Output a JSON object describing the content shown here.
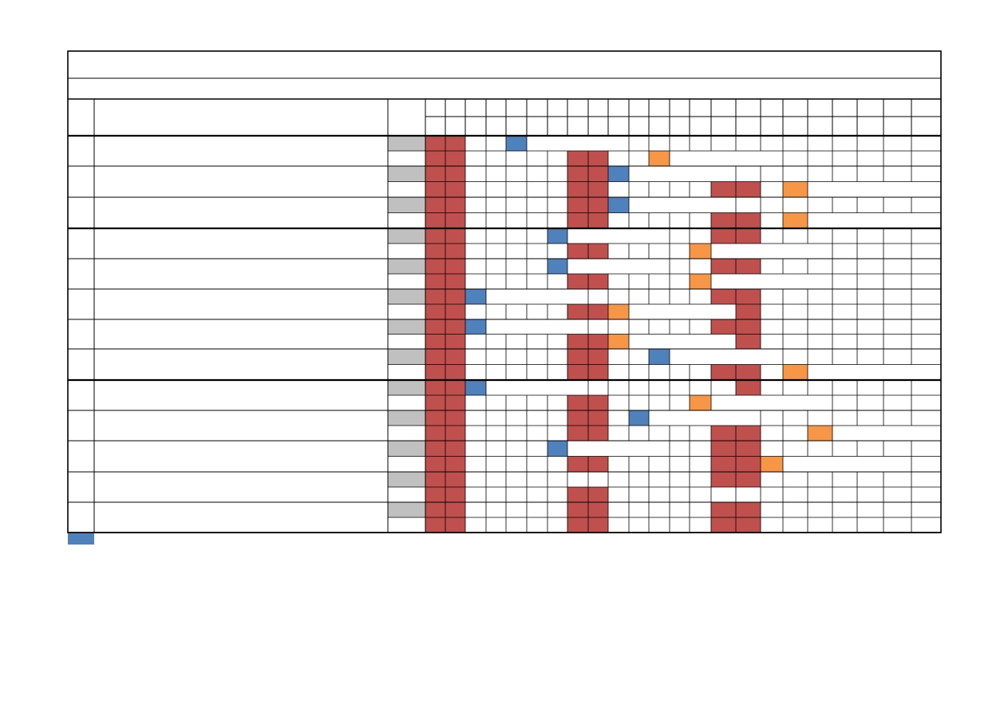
{
  "title": "",
  "subtitle": "",
  "colors": {
    "grid": "#000000",
    "gray": "#c0c0c0",
    "red": "#c0504d",
    "blue": "#4f81bd",
    "orange": "#f79646"
  },
  "legend": {
    "swatch_color": "blue",
    "label": ""
  },
  "schedule": {
    "column_count": 24,
    "rows": [
      [
        {
          "c": "red",
          "s": 0,
          "e": 1
        },
        {
          "c": "blue",
          "s": 4,
          "e": 4
        }
      ],
      [
        {
          "c": "red",
          "s": 0,
          "e": 1
        },
        {
          "c": "red",
          "s": 7,
          "e": 8
        },
        {
          "c": "orange",
          "s": 11,
          "e": 11
        }
      ],
      [
        {
          "c": "red",
          "s": 0,
          "e": 1
        },
        {
          "c": "red",
          "s": 7,
          "e": 8
        },
        {
          "c": "blue",
          "s": 9,
          "e": 9
        }
      ],
      [
        {
          "c": "red",
          "s": 0,
          "e": 1
        },
        {
          "c": "red",
          "s": 7,
          "e": 8
        },
        {
          "c": "red",
          "s": 14,
          "e": 15
        },
        {
          "c": "orange",
          "s": 17,
          "e": 17
        }
      ],
      [
        {
          "c": "red",
          "s": 0,
          "e": 1
        },
        {
          "c": "red",
          "s": 7,
          "e": 8
        },
        {
          "c": "blue",
          "s": 9,
          "e": 9
        }
      ],
      [
        {
          "c": "red",
          "s": 0,
          "e": 1
        },
        {
          "c": "red",
          "s": 7,
          "e": 8
        },
        {
          "c": "red",
          "s": 14,
          "e": 15
        },
        {
          "c": "orange",
          "s": 17,
          "e": 17
        }
      ],
      [
        {
          "c": "red",
          "s": 0,
          "e": 1
        },
        {
          "c": "blue",
          "s": 6,
          "e": 6
        },
        {
          "c": "red",
          "s": 14,
          "e": 15
        }
      ],
      [
        {
          "c": "red",
          "s": 0,
          "e": 1
        },
        {
          "c": "red",
          "s": 7,
          "e": 8
        },
        {
          "c": "orange",
          "s": 13,
          "e": 13
        }
      ],
      [
        {
          "c": "red",
          "s": 0,
          "e": 1
        },
        {
          "c": "blue",
          "s": 6,
          "e": 6
        },
        {
          "c": "red",
          "s": 14,
          "e": 15
        }
      ],
      [
        {
          "c": "red",
          "s": 0,
          "e": 1
        },
        {
          "c": "red",
          "s": 7,
          "e": 8
        },
        {
          "c": "orange",
          "s": 13,
          "e": 13
        }
      ],
      [
        {
          "c": "red",
          "s": 0,
          "e": 1
        },
        {
          "c": "blue",
          "s": 2,
          "e": 2
        },
        {
          "c": "red",
          "s": 14,
          "e": 15
        }
      ],
      [
        {
          "c": "red",
          "s": 0,
          "e": 1
        },
        {
          "c": "red",
          "s": 7,
          "e": 8
        },
        {
          "c": "orange",
          "s": 9,
          "e": 9
        },
        {
          "c": "red",
          "s": 15,
          "e": 15
        }
      ],
      [
        {
          "c": "red",
          "s": 0,
          "e": 1
        },
        {
          "c": "blue",
          "s": 2,
          "e": 2
        },
        {
          "c": "red",
          "s": 14,
          "e": 15
        }
      ],
      [
        {
          "c": "red",
          "s": 0,
          "e": 1
        },
        {
          "c": "red",
          "s": 7,
          "e": 8
        },
        {
          "c": "orange",
          "s": 9,
          "e": 9
        },
        {
          "c": "red",
          "s": 15,
          "e": 15
        }
      ],
      [
        {
          "c": "red",
          "s": 0,
          "e": 1
        },
        {
          "c": "red",
          "s": 7,
          "e": 8
        },
        {
          "c": "blue",
          "s": 11,
          "e": 11
        }
      ],
      [
        {
          "c": "red",
          "s": 0,
          "e": 1
        },
        {
          "c": "red",
          "s": 7,
          "e": 8
        },
        {
          "c": "red",
          "s": 14,
          "e": 15
        },
        {
          "c": "orange",
          "s": 17,
          "e": 17
        }
      ],
      [
        {
          "c": "red",
          "s": 0,
          "e": 1
        },
        {
          "c": "blue",
          "s": 2,
          "e": 2
        },
        {
          "c": "red",
          "s": 15,
          "e": 15
        }
      ],
      [
        {
          "c": "red",
          "s": 0,
          "e": 1
        },
        {
          "c": "red",
          "s": 7,
          "e": 8
        },
        {
          "c": "orange",
          "s": 13,
          "e": 13
        }
      ],
      [
        {
          "c": "red",
          "s": 0,
          "e": 1
        },
        {
          "c": "red",
          "s": 7,
          "e": 8
        },
        {
          "c": "blue",
          "s": 10,
          "e": 10
        }
      ],
      [
        {
          "c": "red",
          "s": 0,
          "e": 1
        },
        {
          "c": "red",
          "s": 7,
          "e": 8
        },
        {
          "c": "red",
          "s": 14,
          "e": 15
        },
        {
          "c": "orange",
          "s": 18,
          "e": 18
        }
      ],
      [
        {
          "c": "red",
          "s": 0,
          "e": 1
        },
        {
          "c": "blue",
          "s": 6,
          "e": 6
        },
        {
          "c": "red",
          "s": 14,
          "e": 15
        }
      ],
      [
        {
          "c": "red",
          "s": 0,
          "e": 1
        },
        {
          "c": "red",
          "s": 7,
          "e": 8
        },
        {
          "c": "red",
          "s": 14,
          "e": 15
        },
        {
          "c": "orange",
          "s": 16,
          "e": 16
        }
      ],
      [
        {
          "c": "red",
          "s": 0,
          "e": 1
        },
        {
          "c": "red",
          "s": 14,
          "e": 15
        }
      ],
      [
        {
          "c": "red",
          "s": 0,
          "e": 1
        },
        {
          "c": "red",
          "s": 7,
          "e": 8
        }
      ],
      [
        {
          "c": "red",
          "s": 0,
          "e": 1
        },
        {
          "c": "red",
          "s": 7,
          "e": 8
        },
        {
          "c": "red",
          "s": 14,
          "e": 15
        }
      ],
      [
        {
          "c": "red",
          "s": 0,
          "e": 1
        },
        {
          "c": "red",
          "s": 7,
          "e": 8
        },
        {
          "c": "red",
          "s": 14,
          "e": 15
        }
      ]
    ]
  }
}
